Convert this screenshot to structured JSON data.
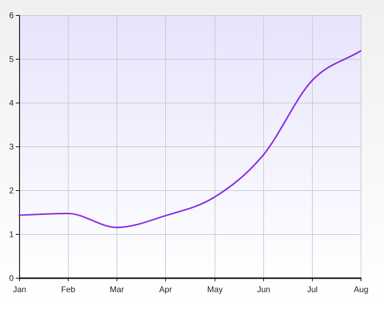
{
  "chart_data": {
    "type": "line",
    "title": "",
    "xlabel": "",
    "ylabel": "",
    "categories": [
      "Jan",
      "Feb",
      "Mar",
      "Apr",
      "May",
      "Jun",
      "Jul",
      "Aug"
    ],
    "ylim": [
      0,
      6
    ],
    "yticks": [
      0,
      1,
      2,
      3,
      4,
      5,
      6
    ],
    "grid": true,
    "legend": "none",
    "series": [
      {
        "values": [
          1.43,
          1.47,
          1.15,
          1.42,
          1.84,
          2.8,
          4.5,
          5.18
        ]
      }
    ],
    "colors": {
      "line": "#8a2be2",
      "grid": "#c8c8d4",
      "axis": "#000000",
      "plot_top": "#e6e4fb",
      "plot_bottom": "#ffffff",
      "page_top": "#f0f0f0",
      "page_bottom": "#ffffff"
    }
  }
}
